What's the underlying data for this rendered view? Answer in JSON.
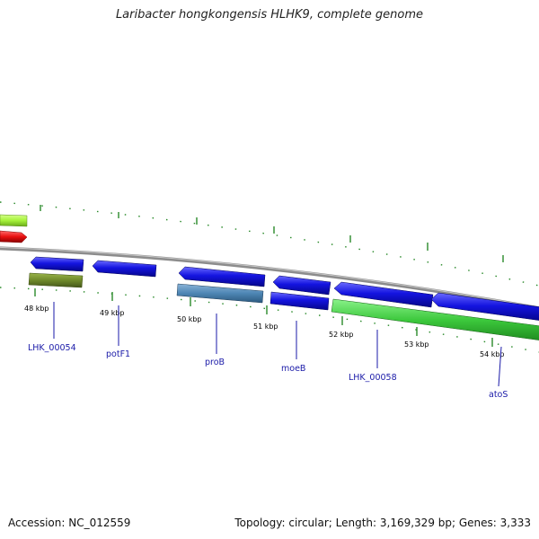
{
  "title": "Laribacter hongkongensis HLHK9, complete genome",
  "footer": {
    "accession": "Accession: NC_012559",
    "topology": "Topology: circular; Length: 3,169,329 bp; Genes: 3,333"
  },
  "scale_labels": [
    "48 kbp",
    "49 kbp",
    "50 kbp",
    "51 kbp",
    "52 kbp",
    "53 kbp",
    "54 kbp"
  ],
  "gene_labels": [
    "LHK_00054",
    "potF1",
    "proB",
    "moeB",
    "LHK_00058",
    "atoS"
  ],
  "colors": {
    "forward_gene": "#1010d8",
    "reverse_gene": "#3fcf3f",
    "olive_gene": "#6f8a2a",
    "steel_gene": "#4e86b4",
    "red_gene": "#e81010",
    "lime_gene": "#a6f23a",
    "backbone": "#8c8c8c",
    "tick_green": "#2a8a2a",
    "label_blue": "#1a1aa8"
  }
}
